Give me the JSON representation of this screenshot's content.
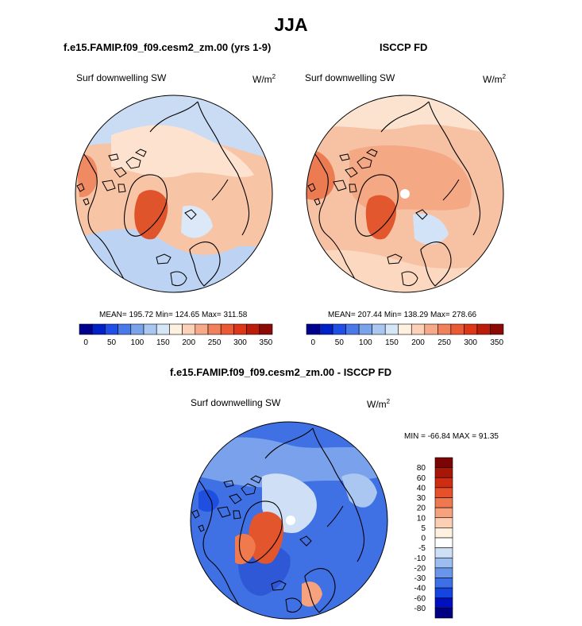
{
  "main_title": "JJA",
  "colors": {
    "abs_scale": [
      "#00008f",
      "#0020c8",
      "#1f4fe6",
      "#4a7ae9",
      "#7ba3ec",
      "#aac7f1",
      "#d5e6f7",
      "#fff1df",
      "#fcd1b7",
      "#f7aa89",
      "#f1805c",
      "#ea5a35",
      "#dd3717",
      "#bc1d0a",
      "#8c0a06"
    ],
    "diff_scale": [
      "#000080",
      "#0010c0",
      "#1545e0",
      "#3d6fe7",
      "#6995eb",
      "#9cbdef",
      "#cde0f6",
      "#ffffff",
      "#fff0df",
      "#fccfb4",
      "#f6a27f",
      "#f07850",
      "#e6502b",
      "#cf2d12",
      "#a81608",
      "#7a0504"
    ],
    "coast": "#000000",
    "pole_hole": "#ffffff"
  },
  "panels": {
    "model": {
      "title": "f.e15.FAMIP.f09_f09.cesm2_zm.00 (yrs 1-9)",
      "field": "Surf downwelling SW",
      "units": "W/m",
      "units_exp": "2",
      "stats": "MEAN= 195.72  Min= 124.65  Max= 311.58"
    },
    "obs": {
      "title": "ISCCP FD",
      "field": "Surf downwelling SW",
      "units": "W/m",
      "units_exp": "2",
      "stats": "MEAN= 207.44  Min= 138.29  Max= 278.66"
    },
    "diff": {
      "title": "f.e15.FAMIP.f09_f09.cesm2_zm.00 - ISCCP FD",
      "field": "Surf downwelling SW",
      "units": "W/m",
      "units_exp": "2",
      "stats": "MIN = -66.84 MAX =  91.35"
    }
  },
  "chart_data": [
    {
      "type": "heatmap",
      "projection": "north polar stereographic",
      "title": "f.e15.FAMIP.f09_f09.cesm2_zm.00 (yrs 1-9)",
      "variable": "Surf downwelling SW",
      "units": "W/m2",
      "mean": 195.72,
      "min": 124.65,
      "max": 311.58,
      "colorbar_levels": [
        0,
        25,
        50,
        75,
        100,
        125,
        150,
        175,
        200,
        225,
        250,
        275,
        300,
        325,
        350
      ],
      "colorbar_tick_labels": [
        "0",
        "50",
        "100",
        "150",
        "200",
        "250",
        "300",
        "350"
      ]
    },
    {
      "type": "heatmap",
      "projection": "north polar stereographic",
      "title": "ISCCP FD",
      "variable": "Surf downwelling SW",
      "units": "W/m2",
      "mean": 207.44,
      "min": 138.29,
      "max": 278.66,
      "colorbar_levels": [
        0,
        25,
        50,
        75,
        100,
        125,
        150,
        175,
        200,
        225,
        250,
        275,
        300,
        325,
        350
      ],
      "colorbar_tick_labels": [
        "0",
        "50",
        "100",
        "150",
        "200",
        "250",
        "300",
        "350"
      ]
    },
    {
      "type": "heatmap",
      "projection": "north polar stereographic",
      "title": "f.e15.FAMIP.f09_f09.cesm2_zm.00 - ISCCP FD",
      "variable": "Surf downwelling SW",
      "units": "W/m2",
      "min": -66.84,
      "max": 91.35,
      "colorbar_levels": [
        -80,
        -60,
        -40,
        -30,
        -20,
        -10,
        -5,
        0,
        5,
        10,
        20,
        30,
        40,
        60,
        80
      ],
      "colorbar_tick_labels": [
        "80",
        "60",
        "40",
        "30",
        "20",
        "10",
        "5",
        "0",
        "-5",
        "-10",
        "-20",
        "-30",
        "-40",
        "-60",
        "-80"
      ]
    }
  ]
}
